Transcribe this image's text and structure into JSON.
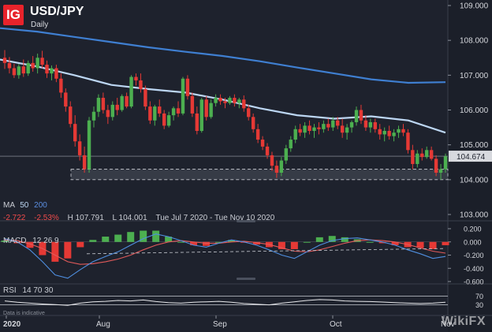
{
  "header": {
    "logo_text": "IG",
    "symbol": "USD/JPY",
    "timeframe": "Daily"
  },
  "ma_legend": {
    "label": "MA",
    "fast": "50",
    "slow": "200"
  },
  "stats": {
    "change": "-2.722",
    "change_pct": "-2.53%",
    "high": "H 107.791",
    "low": "L 104.001",
    "range": "Tue Jul 7 2020 - Tue Nov 10 2020"
  },
  "macd_legend": {
    "label": "MACD",
    "params": "12 26 9"
  },
  "rsi_legend": {
    "label": "RSI",
    "params": "14 70 30"
  },
  "footer_note": "Data is indicative",
  "watermark": "WikiFX",
  "current_price": "104.674",
  "colors": {
    "background": "#1e222d",
    "up": "#4caf50",
    "down": "#e53935",
    "ma50": "#bcd6f2",
    "ma200": "#3f7fd1"
  },
  "chart_data": [
    {
      "type": "candlestick",
      "title": "USD/JPY",
      "subtitle": "Daily",
      "xlabel": "",
      "ylabel": "",
      "ylim": [
        103.0,
        109.0
      ],
      "yticks": [
        "109.000",
        "108.000",
        "107.000",
        "106.000",
        "105.000",
        "104.000",
        "103.000"
      ],
      "xticks": [
        "2020",
        "Aug",
        "Sep",
        "Oct",
        "Nov"
      ],
      "support_zone": [
        104.0,
        104.3
      ],
      "last_price": 104.674,
      "ma50": [
        107.45,
        107.25,
        107.0,
        106.72,
        106.6,
        106.5,
        106.3,
        106.05,
        105.85,
        105.75,
        105.82,
        105.7,
        105.35
      ],
      "ma200": [
        108.35,
        108.25,
        108.1,
        107.95,
        107.8,
        107.67,
        107.55,
        107.4,
        107.22,
        107.05,
        106.88,
        106.78,
        106.8
      ],
      "ohlc": [
        [
          107.5,
          107.72,
          107.18,
          107.35
        ],
        [
          107.35,
          107.52,
          107.05,
          107.2
        ],
        [
          107.2,
          107.33,
          106.92,
          107.0
        ],
        [
          107.0,
          107.32,
          106.9,
          107.25
        ],
        [
          107.25,
          107.45,
          106.95,
          107.05
        ],
        [
          107.05,
          107.42,
          106.98,
          107.35
        ],
        [
          107.35,
          107.55,
          107.1,
          107.2
        ],
        [
          107.2,
          107.62,
          107.05,
          107.5
        ],
        [
          107.5,
          107.7,
          107.2,
          107.3
        ],
        [
          107.3,
          107.42,
          106.92,
          107.05
        ],
        [
          107.05,
          107.28,
          106.85,
          107.2
        ],
        [
          107.2,
          107.3,
          106.8,
          106.9
        ],
        [
          106.9,
          107.05,
          106.35,
          106.5
        ],
        [
          106.5,
          106.62,
          105.95,
          106.1
        ],
        [
          106.1,
          106.25,
          105.5,
          105.6
        ],
        [
          105.6,
          105.85,
          104.95,
          105.1
        ],
        [
          105.1,
          105.3,
          104.55,
          104.7
        ],
        [
          104.7,
          104.95,
          104.2,
          104.3
        ],
        [
          104.3,
          105.8,
          104.2,
          105.7
        ],
        [
          105.7,
          106.1,
          105.5,
          105.95
        ],
        [
          105.95,
          106.45,
          105.8,
          106.35
        ],
        [
          106.35,
          106.5,
          105.9,
          106.0
        ],
        [
          106.0,
          106.15,
          105.6,
          105.8
        ],
        [
          105.8,
          106.25,
          105.7,
          106.15
        ],
        [
          106.15,
          106.35,
          105.85,
          106.0
        ],
        [
          106.0,
          106.45,
          105.95,
          106.4
        ],
        [
          106.4,
          106.5,
          106.05,
          106.1
        ],
        [
          106.1,
          107.0,
          106.05,
          106.95
        ],
        [
          106.95,
          107.05,
          106.7,
          106.85
        ],
        [
          106.85,
          107.05,
          106.5,
          106.6
        ],
        [
          106.6,
          106.7,
          106.0,
          106.1
        ],
        [
          106.1,
          106.25,
          105.6,
          105.7
        ],
        [
          105.7,
          106.15,
          105.55,
          106.1
        ],
        [
          106.1,
          106.3,
          105.8,
          105.9
        ],
        [
          105.9,
          106.0,
          105.45,
          105.55
        ],
        [
          105.55,
          105.95,
          105.5,
          105.85
        ],
        [
          105.85,
          106.1,
          105.7,
          106.05
        ],
        [
          106.05,
          106.25,
          105.8,
          105.9
        ],
        [
          105.9,
          106.95,
          105.85,
          106.9
        ],
        [
          106.9,
          107.0,
          106.3,
          106.4
        ],
        [
          106.4,
          106.5,
          105.8,
          105.9
        ],
        [
          105.9,
          106.1,
          105.3,
          105.4
        ],
        [
          105.4,
          106.35,
          105.35,
          106.3
        ],
        [
          106.3,
          106.4,
          105.7,
          105.8
        ],
        [
          105.8,
          106.3,
          105.75,
          106.2
        ],
        [
          106.2,
          106.45,
          106.1,
          106.35
        ],
        [
          106.35,
          106.45,
          106.15,
          106.25
        ],
        [
          106.25,
          106.35,
          106.05,
          106.2
        ],
        [
          106.2,
          106.4,
          106.15,
          106.35
        ],
        [
          106.35,
          106.45,
          106.1,
          106.2
        ],
        [
          106.2,
          106.35,
          106.05,
          106.3
        ],
        [
          106.3,
          106.42,
          105.95,
          106.05
        ],
        [
          106.05,
          106.15,
          105.7,
          105.8
        ],
        [
          105.8,
          105.9,
          105.35,
          105.45
        ],
        [
          105.45,
          105.6,
          105.05,
          105.15
        ],
        [
          105.15,
          105.25,
          104.85,
          104.95
        ],
        [
          104.95,
          105.05,
          104.6,
          104.7
        ],
        [
          104.7,
          104.8,
          104.25,
          104.4
        ],
        [
          104.4,
          104.55,
          104.05,
          104.2
        ],
        [
          104.2,
          104.65,
          104.1,
          104.55
        ],
        [
          104.55,
          105.0,
          104.45,
          104.9
        ],
        [
          104.9,
          105.25,
          104.8,
          105.15
        ],
        [
          105.15,
          105.55,
          105.05,
          105.45
        ],
        [
          105.45,
          105.6,
          105.25,
          105.35
        ],
        [
          105.35,
          105.65,
          105.2,
          105.55
        ],
        [
          105.55,
          105.7,
          105.3,
          105.4
        ],
        [
          105.4,
          105.6,
          105.2,
          105.5
        ],
        [
          105.5,
          105.65,
          105.3,
          105.45
        ],
        [
          105.45,
          105.7,
          105.35,
          105.6
        ],
        [
          105.6,
          105.75,
          105.4,
          105.5
        ],
        [
          105.5,
          105.8,
          105.4,
          105.7
        ],
        [
          105.7,
          105.8,
          105.45,
          105.55
        ],
        [
          105.55,
          105.75,
          105.2,
          105.35
        ],
        [
          105.35,
          105.6,
          105.15,
          105.5
        ],
        [
          105.5,
          105.7,
          105.35,
          105.65
        ],
        [
          105.65,
          106.1,
          105.55,
          106.0
        ],
        [
          106.0,
          106.15,
          105.6,
          105.7
        ],
        [
          105.7,
          105.85,
          105.4,
          105.5
        ],
        [
          105.5,
          105.75,
          105.35,
          105.65
        ],
        [
          105.65,
          105.75,
          105.35,
          105.45
        ],
        [
          105.45,
          105.6,
          105.15,
          105.3
        ],
        [
          105.3,
          105.5,
          105.1,
          105.4
        ],
        [
          105.4,
          105.55,
          105.15,
          105.25
        ],
        [
          105.25,
          105.45,
          105.1,
          105.35
        ],
        [
          105.35,
          105.55,
          105.2,
          105.45
        ],
        [
          105.45,
          105.6,
          105.25,
          105.35
        ],
        [
          105.35,
          105.45,
          104.75,
          104.85
        ],
        [
          104.85,
          105.0,
          104.3,
          104.45
        ],
        [
          104.45,
          104.85,
          104.35,
          104.75
        ],
        [
          104.75,
          104.9,
          104.55,
          104.65
        ],
        [
          104.65,
          104.95,
          104.6,
          104.85
        ],
        [
          104.85,
          104.95,
          104.55,
          104.6
        ],
        [
          104.6,
          104.7,
          104.1,
          104.2
        ],
        [
          104.2,
          104.45,
          104.0,
          104.3
        ],
        [
          104.3,
          104.75,
          104.2,
          104.67
        ]
      ]
    },
    {
      "type": "macd",
      "title": "MACD",
      "params": "12 26 9",
      "ylim": [
        -0.6,
        0.2
      ],
      "yticks": [
        "0.200",
        "0.000",
        "-0.200",
        "-0.400",
        "-0.600"
      ],
      "macd": [
        0.05,
        0.0,
        -0.12,
        -0.3,
        -0.5,
        -0.55,
        -0.42,
        -0.3,
        -0.22,
        -0.15,
        -0.05,
        0.05,
        0.12,
        0.08,
        0.02,
        -0.05,
        -0.08,
        -0.02,
        0.03,
        0.0,
        -0.05,
        -0.12,
        -0.2,
        -0.25,
        -0.15,
        -0.05,
        0.02,
        0.05,
        0.06,
        0.03,
        0.0,
        -0.05,
        -0.12,
        -0.18,
        -0.25,
        -0.22
      ],
      "signal": [
        0.03,
        0.02,
        -0.03,
        -0.1,
        -0.2,
        -0.3,
        -0.34,
        -0.33,
        -0.3,
        -0.26,
        -0.2,
        -0.12,
        -0.05,
        0.0,
        0.02,
        0.0,
        -0.02,
        -0.02,
        0.0,
        0.01,
        -0.01,
        -0.04,
        -0.09,
        -0.14,
        -0.15,
        -0.12,
        -0.07,
        -0.02,
        0.02,
        0.03,
        0.02,
        0.0,
        -0.04,
        -0.09,
        -0.14,
        -0.17
      ],
      "histogram": [
        0.02,
        -0.02,
        -0.09,
        -0.2,
        -0.3,
        -0.25,
        -0.08,
        0.03,
        0.08,
        0.11,
        0.15,
        0.17,
        0.17,
        0.08,
        0.0,
        -0.05,
        -0.06,
        0.0,
        0.03,
        -0.01,
        -0.04,
        -0.08,
        -0.11,
        -0.11,
        0.0,
        0.07,
        0.09,
        0.07,
        0.04,
        0.0,
        -0.02,
        -0.05,
        -0.08,
        -0.09,
        -0.11,
        -0.05
      ]
    },
    {
      "type": "rsi",
      "title": "RSI",
      "params": "14 70 30",
      "ylim": [
        0,
        100
      ],
      "levels": [
        70,
        30
      ],
      "values": [
        48,
        42,
        38,
        34,
        31,
        28,
        38,
        44,
        46,
        50,
        48,
        52,
        45,
        40,
        38,
        42,
        44,
        46,
        42,
        36,
        33,
        30,
        38,
        44,
        50,
        54,
        52,
        48,
        46,
        45,
        43,
        40,
        38,
        36,
        38,
        42
      ]
    }
  ]
}
